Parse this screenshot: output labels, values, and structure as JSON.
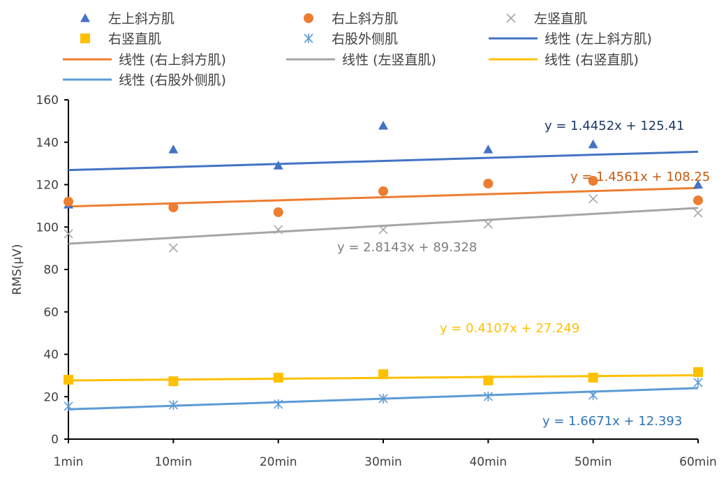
{
  "chart_data": {
    "type": "scatter",
    "title": "",
    "xlabel": "",
    "ylabel": "RMS(μV)",
    "categories": [
      "1min",
      "10min",
      "20min",
      "30min",
      "40min",
      "50min",
      "60min"
    ],
    "ylim": [
      0,
      160
    ],
    "yticks": [
      0,
      20,
      40,
      60,
      80,
      100,
      120,
      140,
      160
    ],
    "grid": false,
    "legend_position": "top",
    "series": [
      {
        "name": "左上斜方肌",
        "marker": "triangle",
        "color": "#4472C4",
        "values": [
          110.6,
          136.6,
          129,
          147.8,
          136.6,
          139,
          120
        ],
        "trend": {
          "name": "线性 (左上斜方肌)",
          "slope": 1.4452,
          "intercept": 125.41,
          "label": "y = 1.4452x + 125.41",
          "label_color": "#1F3864"
        }
      },
      {
        "name": "右上斜方肌",
        "marker": "circle",
        "color": "#ED7D31",
        "values": [
          112,
          109.3,
          107,
          116.9,
          120.5,
          121.8,
          112.6
        ],
        "trend": {
          "name": "线性 (右上斜方肌)",
          "slope": 1.4561,
          "intercept": 108.25,
          "label": "y = 1.4561x + 108.25",
          "label_color": "#C55A11"
        }
      },
      {
        "name": "左竖直肌",
        "marker": "x",
        "color": "#A5A5A5",
        "values": [
          96.8,
          90.2,
          98.8,
          98.8,
          101.4,
          113.3,
          106.7
        ],
        "trend": {
          "name": "线性 (左竖直肌)",
          "slope": 2.8143,
          "intercept": 89.328,
          "label": "y = 2.8143x + 89.328",
          "label_color": "#7F7F7F"
        }
      },
      {
        "name": "右竖直肌",
        "marker": "square",
        "color": "#FFC000",
        "values": [
          28,
          27.3,
          29,
          30.6,
          27.7,
          29,
          31.6
        ],
        "trend": {
          "name": "线性 (右竖直肌)",
          "slope": 0.4107,
          "intercept": 27.249,
          "label": "y = 0.4107x + 27.249",
          "label_color": "#FFC000"
        }
      },
      {
        "name": "右股外侧肌",
        "marker": "star",
        "color": "#5B9BD5",
        "values": [
          15.5,
          16.1,
          16.5,
          19.1,
          20.1,
          20.7,
          26.7
        ],
        "trend": {
          "name": "线性 (右股外侧肌)",
          "slope": 1.6671,
          "intercept": 12.393,
          "label": "y = 1.6671x + 12.393",
          "label_color": "#2E75B6"
        }
      }
    ]
  }
}
